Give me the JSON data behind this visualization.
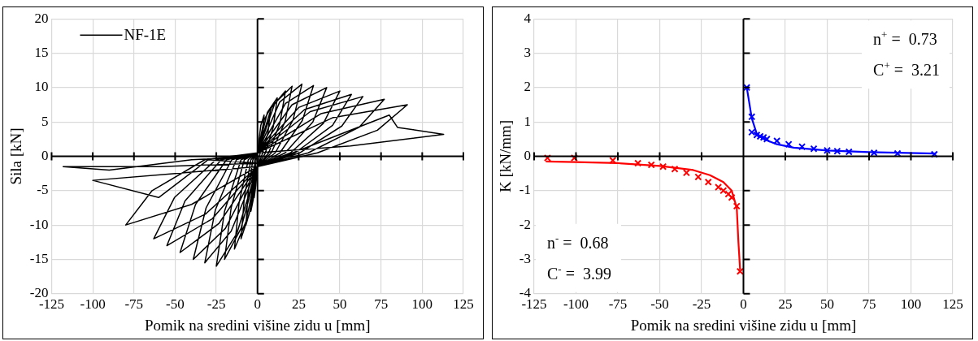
{
  "chart_data": [
    {
      "type": "line",
      "xlabel": "Pomik na sredini višine zidu u [mm]",
      "ylabel": "Sila [kN]",
      "xlim": [
        -125,
        125
      ],
      "ylim": [
        -20,
        20
      ],
      "xticks": [
        -125,
        -100,
        -75,
        -50,
        -25,
        0,
        25,
        50,
        75,
        100,
        125
      ],
      "yticks": [
        -20,
        -15,
        -10,
        -5,
        0,
        5,
        10,
        15,
        20
      ],
      "grid": true,
      "legend": "top left",
      "marker": "none",
      "line_style": "solid",
      "series": [
        {
          "name": "NF-1E",
          "color": "#000000",
          "x": [
            0,
            2,
            4,
            3.2,
            1.6,
            0,
            -1,
            -2,
            -1.6,
            -0.8,
            0,
            4,
            8,
            6.4,
            3.2,
            0,
            -2,
            -4,
            -3.2,
            -1.6,
            0,
            6,
            12,
            9.6,
            4.8,
            0,
            -3.5,
            -7,
            -5.6,
            -2.8,
            0,
            8.5,
            17,
            13.6,
            6.8,
            0,
            -5,
            -10,
            -8,
            -4,
            0,
            10.5,
            21,
            16.8,
            8.4,
            0,
            -7,
            -14,
            -11.2,
            -5.6,
            0,
            13.5,
            27,
            21.6,
            10.8,
            0,
            -10,
            -20,
            -16,
            -8,
            0,
            17,
            34,
            27.2,
            13.6,
            0,
            -12.5,
            -25,
            -20,
            -10,
            0,
            21,
            42,
            33.6,
            16.8,
            0,
            -16,
            -32,
            -25.6,
            -12.8,
            0,
            25,
            50,
            40,
            20,
            0,
            -19.5,
            -39,
            -31.2,
            -15.6,
            0,
            28.5,
            57,
            45.6,
            22.8,
            0,
            -23.5,
            -47,
            -37.6,
            -18.8,
            0,
            32,
            64,
            51.2,
            25.6,
            0,
            -27.5,
            -55,
            -44,
            -22,
            0,
            38.5,
            77,
            61.6,
            30.8,
            0,
            -31.5,
            -63,
            -50.4,
            -25.2,
            0,
            45.5,
            91,
            72.8,
            36.4,
            0,
            -40,
            -80,
            -64,
            -32,
            0,
            56.5,
            113,
            85,
            80,
            0,
            -50,
            -100,
            -60,
            -30,
            0,
            -59,
            -118,
            -90,
            -40,
            0
          ],
          "values": [
            0.5,
            4.5,
            6,
            3,
            0.5,
            -1.5,
            -4.2,
            -6,
            -3,
            -0.5,
            0.5,
            5.3,
            7,
            3.5,
            0.5,
            -1.5,
            -5.6,
            -8,
            -4,
            -0.5,
            0.5,
            6.4,
            8.5,
            4.3,
            0.5,
            -1.5,
            -7,
            -10,
            -5,
            -0.5,
            0.5,
            7.1,
            9.5,
            4.8,
            0.5,
            -1.5,
            -8.4,
            -12,
            -6,
            -0.5,
            0.5,
            7.7,
            10.2,
            5.1,
            0.5,
            -1.5,
            -9.5,
            -13.5,
            -6.8,
            -0.5,
            0.5,
            7.9,
            10.5,
            5.3,
            0.5,
            -1.5,
            -10.5,
            -15,
            -7.5,
            -0.5,
            0.5,
            7.7,
            10.3,
            5.2,
            0.5,
            -1.5,
            -11.2,
            -16,
            -8,
            -0.5,
            0.5,
            7.5,
            10,
            5,
            0.5,
            -1.5,
            -10.9,
            -15.5,
            -7.8,
            -0.5,
            0.5,
            7.1,
            9.5,
            4.8,
            0.5,
            -1.5,
            -10.5,
            -15,
            -7.5,
            -0.5,
            0.5,
            6.8,
            9,
            4.5,
            0.5,
            -1.5,
            -9.8,
            -14,
            -7,
            -0.5,
            0.5,
            6.5,
            8.7,
            4.4,
            0.5,
            -1.5,
            -9.1,
            -13,
            -6.5,
            -0.5,
            0.5,
            6.2,
            8.3,
            4.2,
            0.5,
            -1.5,
            -8.4,
            -12,
            -6,
            -0.5,
            0.5,
            5.6,
            7.5,
            3.8,
            0.5,
            -1.5,
            -7,
            -10,
            -5,
            -0.5,
            0.5,
            1.5,
            3.2,
            4.2,
            6,
            -1.5,
            -2.5,
            -3.5,
            -6,
            -0.5,
            -1,
            -1.5,
            -1.5,
            -2,
            -0.5,
            0
          ]
        }
      ]
    },
    {
      "type": "scatter",
      "xlabel": "Pomik na sredini višine zidu u [mm]",
      "ylabel": "K [kN/mm]",
      "xlim": [
        -125,
        125
      ],
      "ylim": [
        -4,
        4
      ],
      "xticks": [
        -125,
        -100,
        -75,
        -50,
        -25,
        0,
        25,
        50,
        75,
        100,
        125
      ],
      "yticks": [
        -4,
        -3,
        -2,
        -1,
        0,
        1,
        2,
        3,
        4
      ],
      "grid": true,
      "annotations": [
        "n$^{+}$ =  0.73",
        "C$^{+}$ =  3.21",
        "n$^{-}$ =  0.68",
        "C$^{-}$ =  3.99"
      ],
      "series": [
        {
          "type": "scatter",
          "marker": "cross",
          "color": "#0000ff",
          "x": [
            2,
            5,
            5,
            8,
            10,
            12,
            14,
            20,
            27,
            35,
            42,
            50,
            56,
            63,
            78,
            92,
            114
          ],
          "values": [
            2.0,
            1.15,
            0.7,
            0.62,
            0.58,
            0.55,
            0.5,
            0.45,
            0.35,
            0.28,
            0.22,
            0.17,
            0.15,
            0.13,
            0.1,
            0.08,
            0.06
          ]
        },
        {
          "type": "line",
          "marker": "none",
          "color": "#0000ff",
          "x": [
            2,
            5,
            8,
            12,
            20,
            30,
            50,
            75,
            115
          ],
          "values": [
            2.0,
            1.1,
            0.65,
            0.5,
            0.35,
            0.25,
            0.17,
            0.12,
            0.08
          ]
        },
        {
          "type": "scatter",
          "marker": "cross",
          "color": "#ff0000",
          "x": [
            -117,
            -101,
            -78,
            -63,
            -55,
            -48,
            -41,
            -34,
            -27,
            -21,
            -15,
            -12,
            -9,
            -7,
            -4,
            -2
          ],
          "values": [
            -0.05,
            -0.05,
            -0.12,
            -0.2,
            -0.25,
            -0.3,
            -0.37,
            -0.48,
            -0.6,
            -0.75,
            -0.9,
            -1.0,
            -1.1,
            -1.2,
            -1.45,
            -3.35
          ]
        },
        {
          "type": "line",
          "marker": "none",
          "color": "#ff0000",
          "x": [
            -118,
            -100,
            -75,
            -50,
            -30,
            -20,
            -12,
            -7,
            -4,
            -3,
            -2
          ],
          "values": [
            -0.15,
            -0.17,
            -0.2,
            -0.28,
            -0.4,
            -0.55,
            -0.75,
            -1.0,
            -1.5,
            -2.5,
            -3.3
          ]
        }
      ]
    }
  ]
}
